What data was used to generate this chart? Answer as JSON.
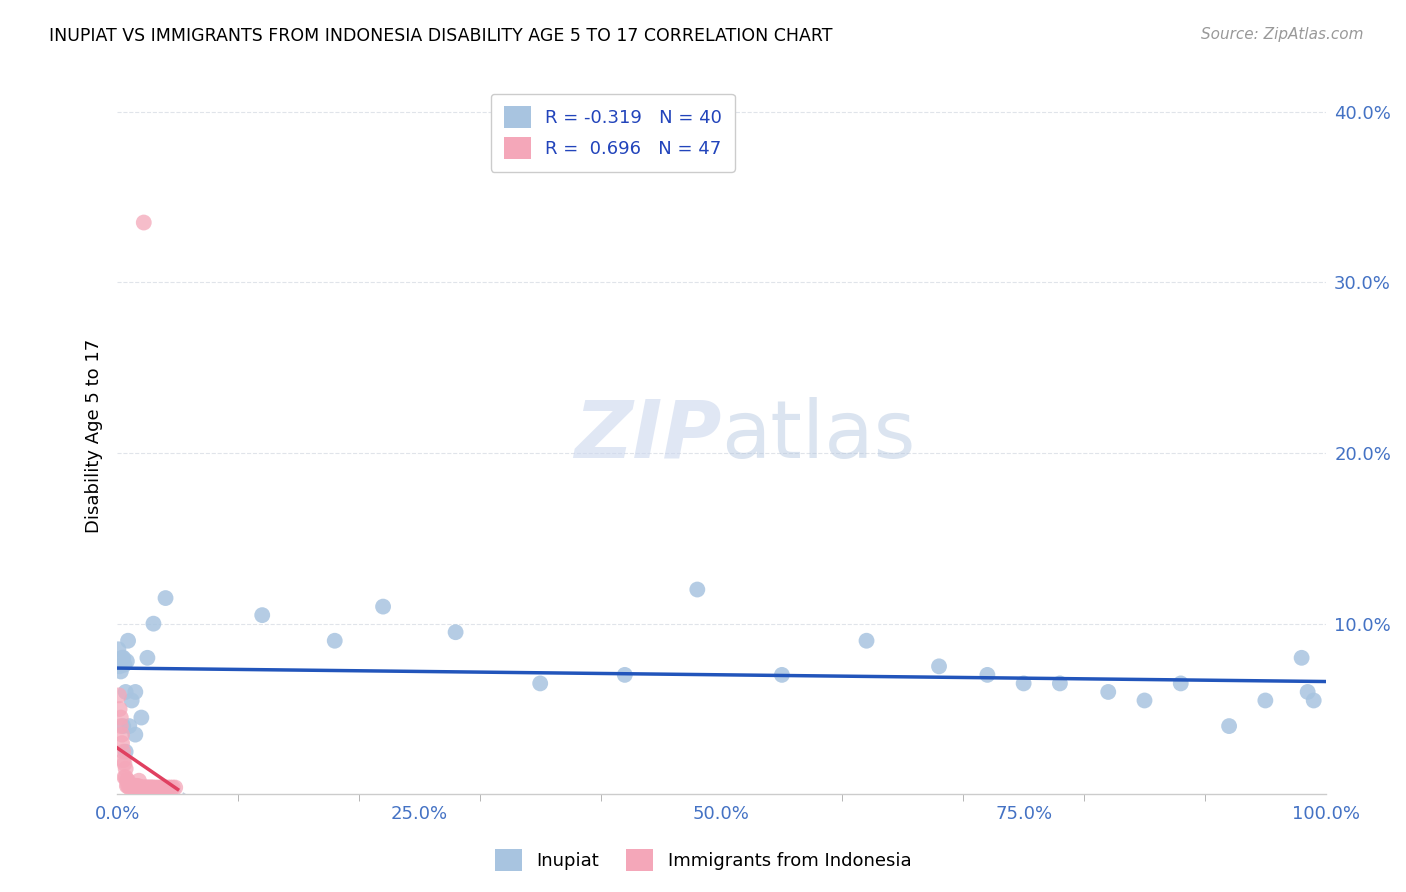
{
  "title": "INUPIAT VS IMMIGRANTS FROM INDONESIA DISABILITY AGE 5 TO 17 CORRELATION CHART",
  "source": "Source: ZipAtlas.com",
  "ylabel": "Disability Age 5 to 17",
  "legend_labels": [
    "Inupiat",
    "Immigrants from Indonesia"
  ],
  "inupiat_color": "#a8c4e0",
  "indonesia_color": "#f4a7b9",
  "trendline_inupiat_color": "#2255bb",
  "trendline_indonesia_color": "#e04060",
  "trendline_dashed_color": "#c8cfe0",
  "R_inupiat": -0.319,
  "N_inupiat": 40,
  "R_indonesia": 0.696,
  "N_indonesia": 47,
  "inupiat_x": [
    0.001,
    0.002,
    0.003,
    0.004,
    0.005,
    0.006,
    0.007,
    0.008,
    0.009,
    0.012,
    0.015,
    0.02,
    0.025,
    0.03,
    0.04,
    0.12,
    0.18,
    0.22,
    0.28,
    0.35,
    0.42,
    0.48,
    0.55,
    0.62,
    0.68,
    0.72,
    0.75,
    0.78,
    0.82,
    0.85,
    0.88,
    0.92,
    0.95,
    0.98,
    0.985,
    0.99,
    0.005,
    0.007,
    0.01,
    0.015
  ],
  "inupiat_y": [
    0.085,
    0.075,
    0.072,
    0.08,
    0.08,
    0.076,
    0.06,
    0.078,
    0.09,
    0.055,
    0.06,
    0.045,
    0.08,
    0.1,
    0.115,
    0.105,
    0.09,
    0.11,
    0.095,
    0.065,
    0.07,
    0.12,
    0.07,
    0.09,
    0.075,
    0.07,
    0.065,
    0.065,
    0.06,
    0.055,
    0.065,
    0.04,
    0.055,
    0.08,
    0.06,
    0.055,
    0.04,
    0.025,
    0.04,
    0.035
  ],
  "indonesia_x": [
    0.0015,
    0.002,
    0.003,
    0.003,
    0.004,
    0.004,
    0.005,
    0.005,
    0.006,
    0.006,
    0.007,
    0.007,
    0.008,
    0.008,
    0.009,
    0.009,
    0.01,
    0.011,
    0.012,
    0.013,
    0.014,
    0.015,
    0.016,
    0.017,
    0.018,
    0.019,
    0.02,
    0.021,
    0.022,
    0.023,
    0.024,
    0.025,
    0.026,
    0.027,
    0.028,
    0.029,
    0.03,
    0.032,
    0.034,
    0.036,
    0.038,
    0.04,
    0.042,
    0.044,
    0.046,
    0.048,
    0.022
  ],
  "indonesia_y": [
    0.058,
    0.05,
    0.04,
    0.045,
    0.03,
    0.035,
    0.02,
    0.025,
    0.01,
    0.018,
    0.01,
    0.015,
    0.005,
    0.008,
    0.005,
    0.008,
    0.004,
    0.005,
    0.005,
    0.005,
    0.005,
    0.005,
    0.005,
    0.005,
    0.008,
    0.004,
    0.004,
    0.004,
    0.004,
    0.004,
    0.004,
    0.004,
    0.004,
    0.004,
    0.004,
    0.004,
    0.004,
    0.004,
    0.004,
    0.004,
    0.004,
    0.004,
    0.004,
    0.004,
    0.004,
    0.004,
    0.335
  ],
  "xlim": [
    0,
    1.0
  ],
  "ylim": [
    0,
    0.42
  ],
  "watermark_zip": "ZIP",
  "watermark_atlas": "atlas",
  "background_color": "#ffffff",
  "grid_color": "#e0e4ea",
  "tick_color": "#4472c4",
  "axis_color": "#cccccc"
}
